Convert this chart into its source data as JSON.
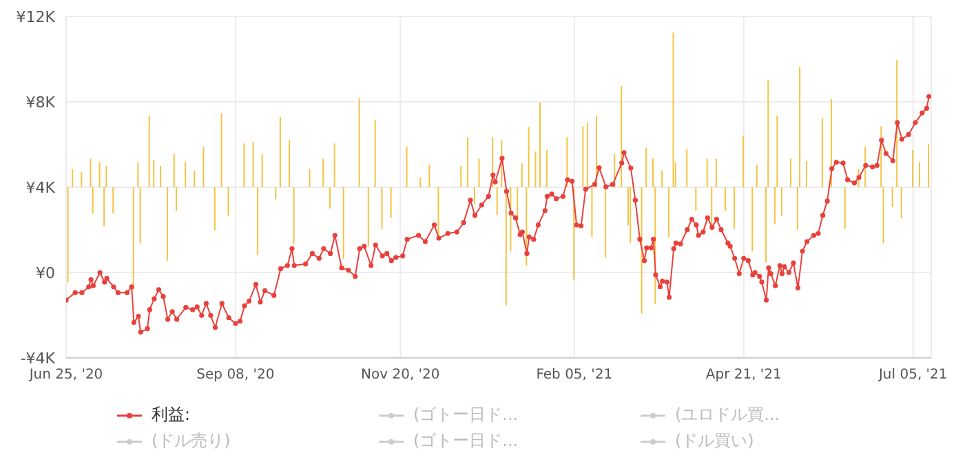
{
  "chart_data": {
    "type": "line",
    "xlim": [
      "2020-06-25",
      "2021-07-13"
    ],
    "xticks": [
      {
        "value": "2020-06-25",
        "label": "Jun 25, '20"
      },
      {
        "value": "2020-09-08",
        "label": "Sep 08, '20"
      },
      {
        "value": "2020-11-20",
        "label": "Nov 20, '20"
      },
      {
        "value": "2021-02-05",
        "label": "Feb 05, '21"
      },
      {
        "value": "2021-04-21",
        "label": "Apr 21, '21"
      },
      {
        "value": "2021-07-05",
        "label": "Jul 05, '21"
      }
    ],
    "ylim": [
      -4000,
      12000
    ],
    "yticks": [
      {
        "value": -4000,
        "label": "-¥4K"
      },
      {
        "value": 0,
        "label": "¥0"
      },
      {
        "value": 4000,
        "label": "¥4K"
      },
      {
        "value": 8000,
        "label": "¥8K"
      },
      {
        "value": 12000,
        "label": "¥12K"
      }
    ],
    "grid": true,
    "legend": "bottom",
    "marker": "circle",
    "line_style": "solid",
    "series": [
      {
        "type": "bar",
        "color": "#f5c342",
        "x": [
          "2020-06-26",
          "2020-06-28",
          "2020-07-02",
          "2020-07-06",
          "2020-07-07",
          "2020-07-10",
          "2020-07-12",
          "2020-07-13",
          "2020-07-16",
          "2020-07-25",
          "2020-07-27",
          "2020-07-28",
          "2020-08-01",
          "2020-08-03",
          "2020-08-06",
          "2020-08-09",
          "2020-08-12",
          "2020-08-13",
          "2020-08-17",
          "2020-08-21",
          "2020-08-25",
          "2020-08-30",
          "2020-09-02",
          "2020-09-05",
          "2020-09-12",
          "2020-09-16",
          "2020-09-18",
          "2020-09-20",
          "2020-09-26",
          "2020-09-28",
          "2020-10-02",
          "2020-10-04",
          "2020-10-11",
          "2020-10-17",
          "2020-10-20",
          "2020-10-22",
          "2020-10-26",
          "2020-11-02",
          "2020-11-06",
          "2020-11-09",
          "2020-11-12",
          "2020-11-16",
          "2020-11-23",
          "2020-11-29",
          "2020-12-03",
          "2020-12-07",
          "2020-12-17",
          "2020-12-20",
          "2020-12-23",
          "2020-12-25",
          "2020-12-31",
          "2021-01-02",
          "2021-01-04",
          "2021-01-06",
          "2021-01-08",
          "2021-01-11",
          "2021-01-13",
          "2021-01-15",
          "2021-01-16",
          "2021-01-19",
          "2021-01-21",
          "2021-01-24",
          "2021-02-02",
          "2021-02-05",
          "2021-02-09",
          "2021-02-11",
          "2021-02-13",
          "2021-02-15",
          "2021-02-19",
          "2021-02-23",
          "2021-02-26",
          "2021-03-01",
          "2021-03-02",
          "2021-03-07",
          "2021-03-09",
          "2021-03-12",
          "2021-03-13",
          "2021-03-16",
          "2021-03-19",
          "2021-03-21",
          "2021-03-22",
          "2021-03-27",
          "2021-03-31",
          "2021-04-05",
          "2021-04-07",
          "2021-04-09",
          "2021-04-13",
          "2021-04-17",
          "2021-04-21",
          "2021-04-25",
          "2021-04-27",
          "2021-05-01",
          "2021-05-02",
          "2021-05-05",
          "2021-05-06",
          "2021-05-08",
          "2021-05-12",
          "2021-05-15",
          "2021-05-16",
          "2021-05-19",
          "2021-05-26",
          "2021-05-30",
          "2021-06-05",
          "2021-06-11",
          "2021-06-14",
          "2021-06-21",
          "2021-06-22",
          "2021-06-26",
          "2021-06-28",
          "2021-06-30",
          "2021-07-05",
          "2021-07-08",
          "2021-07-12"
        ],
        "values": [
          -4460,
          850,
          710,
          1340,
          -1230,
          1180,
          -1830,
          1000,
          -1230,
          -4800,
          1180,
          -2630,
          3350,
          1270,
          1000,
          -3460,
          1560,
          -1120,
          1180,
          780,
          1900,
          -2010,
          3460,
          -1340,
          2050,
          2120,
          -3170,
          1560,
          -560,
          3280,
          2190,
          -2680,
          850,
          1340,
          -1000,
          2050,
          -3350,
          4170,
          -2790,
          3170,
          -1960,
          -1450,
          1900,
          450,
          1050,
          -2340,
          1000,
          2340,
          -780,
          1340,
          2340,
          -1290,
          2230,
          -5540,
          -3010,
          -1560,
          1120,
          -3680,
          2830,
          1670,
          3970,
          1740,
          2340,
          -4350,
          2860,
          3010,
          -2340,
          3350,
          -3300,
          1560,
          4730,
          -1790,
          -2630,
          -5920,
          1850,
          1340,
          -5470,
          780,
          -2340,
          7250,
          1160,
          1790,
          -1120,
          1340,
          -2010,
          1340,
          -1120,
          -1960,
          2410,
          -3010,
          1050,
          -3530,
          5020,
          -1740,
          3350,
          -1340,
          1340,
          -2010,
          5630,
          1230,
          3240,
          4130,
          -1960,
          850,
          1900,
          2860,
          -2630,
          -940,
          5980,
          -1450,
          1740,
          1180,
          2010
        ],
        "base": [
          4000,
          4000,
          4000,
          4000,
          4000,
          4000,
          4000,
          4000,
          4000,
          4000,
          4000,
          4000,
          4000,
          4000,
          4000,
          4000,
          4000,
          4000,
          4000,
          4000,
          4000,
          4000,
          4000,
          4000,
          4000,
          4000,
          4000,
          4000,
          4000,
          4000,
          4000,
          4000,
          4000,
          4000,
          4000,
          4000,
          4000,
          4000,
          4000,
          4000,
          4000,
          4000,
          4000,
          4000,
          4000,
          4000,
          4000,
          4000,
          4000,
          4000,
          4000,
          4000,
          4000,
          4000,
          4000,
          4000,
          4000,
          4000,
          4000,
          4000,
          4000,
          4000,
          4000,
          4000,
          4000,
          4000,
          4000,
          4000,
          4000,
          4000,
          4000,
          4000,
          4000,
          4000,
          4000,
          4000,
          4000,
          4000,
          4000,
          4000,
          4000,
          4000,
          4000,
          4000,
          4000,
          4000,
          4000,
          4000,
          4000,
          4000,
          4000,
          4000,
          4000,
          4000,
          4000,
          4000,
          4000,
          4000,
          4000,
          4000,
          4000,
          4000,
          4000,
          4000,
          4000,
          4000,
          4000,
          4000,
          4000,
          4000,
          4000,
          4000,
          4000
        ]
      },
      {
        "name": "利益:",
        "color": "#e8413c",
        "x": [
          "2020-06-25",
          "2020-06-29",
          "2020-07-02",
          "2020-07-05",
          "2020-07-06",
          "2020-07-07",
          "2020-07-10",
          "2020-07-12",
          "2020-07-13",
          "2020-07-16",
          "2020-07-18",
          "2020-07-22",
          "2020-07-24",
          "2020-07-25",
          "2020-07-27",
          "2020-07-28",
          "2020-07-31",
          "2020-08-01",
          "2020-08-03",
          "2020-08-05",
          "2020-08-07",
          "2020-08-09",
          "2020-08-11",
          "2020-08-13",
          "2020-08-17",
          "2020-08-20",
          "2020-08-22",
          "2020-08-24",
          "2020-08-26",
          "2020-08-28",
          "2020-08-30",
          "2020-09-02",
          "2020-09-05",
          "2020-09-08",
          "2020-09-10",
          "2020-09-12",
          "2020-09-14",
          "2020-09-17",
          "2020-09-19",
          "2020-09-21",
          "2020-09-25",
          "2020-09-28",
          "2020-10-01",
          "2020-10-03",
          "2020-10-04",
          "2020-10-09",
          "2020-10-12",
          "2020-10-15",
          "2020-10-17",
          "2020-10-20",
          "2020-10-22",
          "2020-10-25",
          "2020-10-28",
          "2020-10-31",
          "2020-11-02",
          "2020-11-04",
          "2020-11-07",
          "2020-11-09",
          "2020-11-12",
          "2020-11-14",
          "2020-11-16",
          "2020-11-18",
          "2020-11-21",
          "2020-11-23",
          "2020-11-28",
          "2020-12-01",
          "2020-12-05",
          "2020-12-07",
          "2020-12-11",
          "2020-12-15",
          "2020-12-18",
          "2020-12-21",
          "2020-12-23",
          "2020-12-26",
          "2020-12-29",
          "2020-12-31",
          "2021-01-01",
          "2021-01-04",
          "2021-01-06",
          "2021-01-08",
          "2021-01-10",
          "2021-01-12",
          "2021-01-13",
          "2021-01-15",
          "2021-01-16",
          "2021-01-18",
          "2021-01-20",
          "2021-01-23",
          "2021-01-24",
          "2021-01-26",
          "2021-01-28",
          "2021-01-31",
          "2021-02-02",
          "2021-02-04",
          "2021-02-06",
          "2021-02-08",
          "2021-02-10",
          "2021-02-14",
          "2021-02-16",
          "2021-02-19",
          "2021-02-22",
          "2021-02-26",
          "2021-02-27",
          "2021-03-02",
          "2021-03-04",
          "2021-03-06",
          "2021-03-08",
          "2021-03-09",
          "2021-03-11",
          "2021-03-12",
          "2021-03-13",
          "2021-03-15",
          "2021-03-16",
          "2021-03-18",
          "2021-03-19",
          "2021-03-21",
          "2021-03-22",
          "2021-03-24",
          "2021-03-27",
          "2021-03-29",
          "2021-03-31",
          "2021-04-01",
          "2021-04-03",
          "2021-04-05",
          "2021-04-07",
          "2021-04-09",
          "2021-04-11",
          "2021-04-14",
          "2021-04-15",
          "2021-04-17",
          "2021-04-19",
          "2021-04-21",
          "2021-04-23",
          "2021-04-25",
          "2021-04-26",
          "2021-04-28",
          "2021-04-29",
          "2021-05-01",
          "2021-05-02",
          "2021-05-03",
          "2021-05-05",
          "2021-05-07",
          "2021-05-08",
          "2021-05-09",
          "2021-05-11",
          "2021-05-13",
          "2021-05-15",
          "2021-05-17",
          "2021-05-19",
          "2021-05-22",
          "2021-05-24",
          "2021-05-26",
          "2021-05-28",
          "2021-05-30",
          "2021-06-01",
          "2021-06-04",
          "2021-06-06",
          "2021-06-09",
          "2021-06-11",
          "2021-06-14",
          "2021-06-17",
          "2021-06-19",
          "2021-06-21",
          "2021-06-23",
          "2021-06-26",
          "2021-06-28",
          "2021-06-30",
          "2021-07-03",
          "2021-07-06",
          "2021-07-09",
          "2021-07-11",
          "2021-07-12"
        ],
        "values": [
          -1290,
          -940,
          -940,
          -670,
          -330,
          -620,
          0,
          -450,
          -270,
          -670,
          -940,
          -940,
          -670,
          -2340,
          -2050,
          -2790,
          -2630,
          -1740,
          -1230,
          -800,
          -1120,
          -2190,
          -1830,
          -2190,
          -1630,
          -1740,
          -1610,
          -2010,
          -1450,
          -2010,
          -2570,
          -1450,
          -2120,
          -2390,
          -2280,
          -1560,
          -1340,
          -560,
          -1380,
          -850,
          -1070,
          180,
          330,
          1120,
          330,
          400,
          890,
          670,
          1120,
          890,
          1740,
          220,
          110,
          -180,
          1120,
          1230,
          330,
          1290,
          780,
          890,
          560,
          710,
          780,
          1560,
          1740,
          1450,
          2230,
          1610,
          1830,
          1900,
          2340,
          3390,
          2680,
          3170,
          3570,
          4570,
          4240,
          5350,
          3800,
          2790,
          2560,
          1780,
          1900,
          890,
          1670,
          1560,
          2230,
          2900,
          3570,
          3680,
          3460,
          3570,
          4350,
          4280,
          2230,
          2190,
          3900,
          4130,
          4910,
          4020,
          4130,
          5130,
          5620,
          4900,
          3390,
          1560,
          560,
          1160,
          1160,
          1560,
          -110,
          -670,
          -400,
          -450,
          -1160,
          1120,
          1380,
          1340,
          2010,
          2500,
          2230,
          1740,
          1900,
          2560,
          2120,
          2500,
          2010,
          1380,
          1230,
          670,
          -50,
          670,
          560,
          -110,
          0,
          -180,
          -450,
          -1290,
          220,
          -50,
          -620,
          330,
          -50,
          270,
          0,
          450,
          -720,
          1000,
          1450,
          1740,
          1830,
          2680,
          3350,
          4870,
          5170,
          5130,
          4350,
          4200,
          4460,
          5020,
          4950,
          5020,
          6200,
          5580,
          5240,
          7030,
          6250,
          6470,
          7030,
          7480,
          7700,
          8250
        ]
      },
      {
        "name": "(ゴトー日ド...",
        "color": "#cccccc"
      },
      {
        "name": "(ユロドル買...",
        "color": "#cccccc"
      },
      {
        "name": "(ドル売り)",
        "color": "#cccccc"
      },
      {
        "name": "(ゴトー日ド...",
        "color": "#cccccc"
      },
      {
        "name": "(ドル買い)",
        "color": "#cccccc"
      }
    ]
  }
}
